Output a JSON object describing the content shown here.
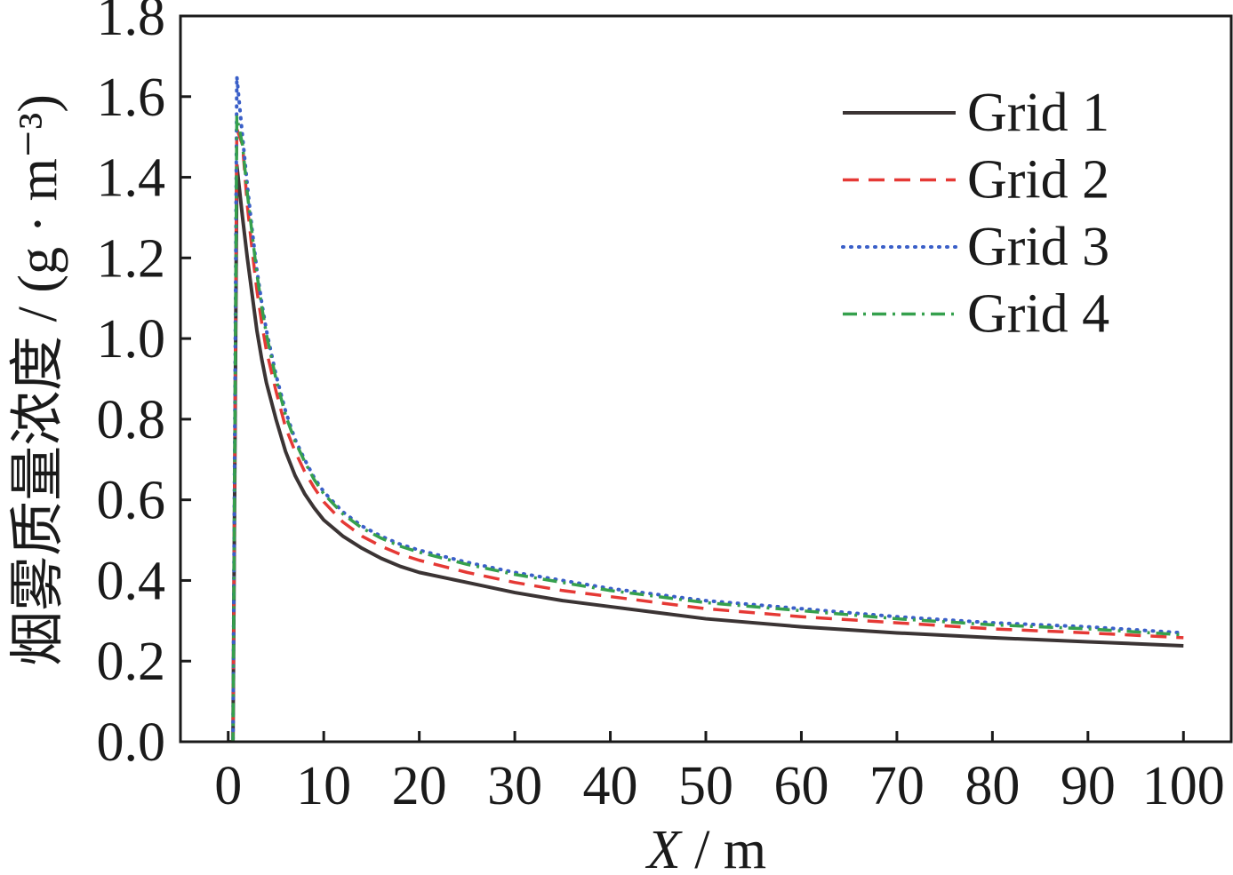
{
  "chart_data": {
    "type": "line",
    "xlabel": "X / m",
    "ylabel": "烟雾质量浓度 / (g · m⁻³)",
    "xlim": [
      -5,
      105
    ],
    "ylim": [
      0,
      1.8
    ],
    "xticks": [
      0,
      10,
      20,
      30,
      40,
      50,
      60,
      70,
      80,
      90,
      100
    ],
    "xtick_labels": [
      "0",
      "10",
      "20",
      "30",
      "40",
      "50",
      "60",
      "70",
      "80",
      "90",
      "100"
    ],
    "yticks": [
      0,
      0.2,
      0.4,
      0.6,
      0.8,
      1.0,
      1.2,
      1.4,
      1.6,
      1.8
    ],
    "ytick_labels": [
      "0.0",
      "0.2",
      "0.4",
      "0.6",
      "0.8",
      "1.0",
      "1.2",
      "1.4",
      "1.6",
      "1.8"
    ],
    "grid": false,
    "legend": "top-right",
    "x": [
      0,
      0.5,
      0.9,
      1.5,
      2,
      2.5,
      3,
      3.5,
      4,
      5,
      6,
      7,
      8,
      9,
      10,
      12,
      14,
      16,
      18,
      20,
      25,
      30,
      35,
      40,
      45,
      50,
      60,
      70,
      80,
      90,
      100
    ],
    "series": [
      {
        "name": "Grid 1",
        "color": "#3b3434",
        "style": "solid",
        "y": [
          0,
          0,
          1.43,
          1.3,
          1.2,
          1.11,
          1.02,
          0.95,
          0.89,
          0.8,
          0.72,
          0.66,
          0.615,
          0.58,
          0.55,
          0.51,
          0.48,
          0.455,
          0.435,
          0.42,
          0.395,
          0.37,
          0.35,
          0.335,
          0.32,
          0.305,
          0.285,
          0.27,
          0.258,
          0.248,
          0.238
        ]
      },
      {
        "name": "Grid 2",
        "color": "#e53935",
        "style": "dashed",
        "y": [
          0,
          0,
          1.52,
          1.48,
          1.33,
          1.22,
          1.12,
          1.04,
          0.97,
          0.87,
          0.78,
          0.72,
          0.67,
          0.63,
          0.595,
          0.545,
          0.51,
          0.485,
          0.465,
          0.45,
          0.42,
          0.395,
          0.375,
          0.36,
          0.345,
          0.33,
          0.31,
          0.295,
          0.28,
          0.27,
          0.258
        ]
      },
      {
        "name": "Grid 3",
        "color": "#3a5fc8",
        "style": "dotted",
        "y": [
          0,
          0,
          1.65,
          1.5,
          1.38,
          1.27,
          1.17,
          1.09,
          1.02,
          0.91,
          0.82,
          0.75,
          0.7,
          0.655,
          0.62,
          0.57,
          0.535,
          0.51,
          0.49,
          0.475,
          0.445,
          0.42,
          0.4,
          0.38,
          0.365,
          0.35,
          0.33,
          0.31,
          0.295,
          0.285,
          0.27
        ]
      },
      {
        "name": "Grid 4",
        "color": "#35a04d",
        "style": "dashdot",
        "y": [
          0,
          0,
          1.55,
          1.48,
          1.36,
          1.26,
          1.16,
          1.08,
          1.01,
          0.9,
          0.81,
          0.745,
          0.695,
          0.65,
          0.615,
          0.565,
          0.53,
          0.505,
          0.485,
          0.47,
          0.44,
          0.415,
          0.395,
          0.375,
          0.36,
          0.345,
          0.325,
          0.305,
          0.29,
          0.28,
          0.265
        ]
      }
    ]
  }
}
